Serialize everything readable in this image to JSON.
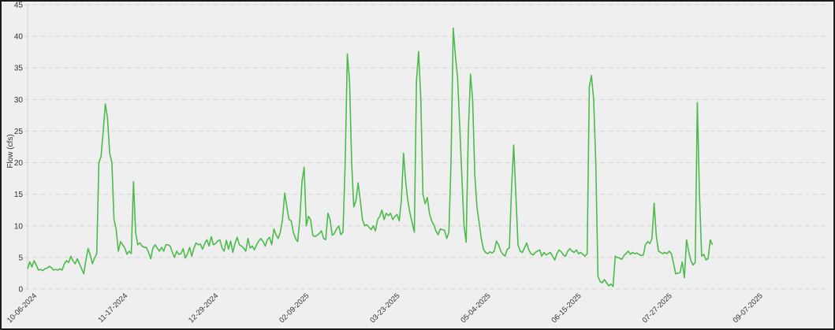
{
  "chart_data": {
    "type": "line",
    "title": "",
    "xlabel": "",
    "ylabel": "Flow (cfs)",
    "ylim": [
      0,
      45
    ],
    "yticks": [
      0,
      5,
      10,
      15,
      20,
      25,
      30,
      35,
      40,
      45
    ],
    "grid": "horizontal dashed",
    "legend": "none",
    "line_color": "#4cbb4c",
    "x_tick_labels": [
      "10-06-2024",
      "11-17-2024",
      "12-29-2024",
      "02-09-2025",
      "03-23-2025",
      "05-04-2025",
      "06-15-2025",
      "07-27-2025",
      "09-07-2025"
    ],
    "x_tick_days": [
      0,
      42,
      84,
      126,
      168,
      210,
      252,
      294,
      336
    ],
    "x_range_days": [
      0,
      371
    ],
    "series": [
      {
        "name": "Flow (cfs)",
        "points": [
          [
            0,
            3.2
          ],
          [
            1,
            4.3
          ],
          [
            2,
            3.5
          ],
          [
            3,
            4.5
          ],
          [
            4,
            3.8
          ],
          [
            5,
            3.0
          ],
          [
            6,
            3.1
          ],
          [
            7,
            2.9
          ],
          [
            8,
            3.2
          ],
          [
            9,
            3.3
          ],
          [
            10,
            3.6
          ],
          [
            11,
            3.4
          ],
          [
            12,
            3.0
          ],
          [
            13,
            3.1
          ],
          [
            14,
            3.0
          ],
          [
            15,
            3.2
          ],
          [
            16,
            3.0
          ],
          [
            17,
            4.0
          ],
          [
            18,
            4.5
          ],
          [
            19,
            4.2
          ],
          [
            20,
            5.2
          ],
          [
            21,
            4.5
          ],
          [
            22,
            4.0
          ],
          [
            23,
            4.8
          ],
          [
            24,
            4.0
          ],
          [
            25,
            3.2
          ],
          [
            26,
            2.4
          ],
          [
            27,
            4.6
          ],
          [
            28,
            6.4
          ],
          [
            29,
            5.4
          ],
          [
            30,
            4.0
          ],
          [
            31,
            4.9
          ],
          [
            32,
            5.6
          ],
          [
            33,
            20.0
          ],
          [
            34,
            21.0
          ],
          [
            35,
            25.0
          ],
          [
            36,
            29.3
          ],
          [
            37,
            27.0
          ],
          [
            38,
            21.5
          ],
          [
            39,
            20.0
          ],
          [
            40,
            11.0
          ],
          [
            41,
            9.5
          ],
          [
            42,
            6.0
          ],
          [
            43,
            7.5
          ],
          [
            44,
            7.0
          ],
          [
            45,
            6.5
          ],
          [
            46,
            5.5
          ],
          [
            47,
            6.0
          ],
          [
            48,
            5.6
          ],
          [
            49,
            17.0
          ],
          [
            50,
            9.0
          ],
          [
            51,
            7.0
          ],
          [
            52,
            7.3
          ],
          [
            53,
            6.8
          ],
          [
            54,
            6.6
          ],
          [
            55,
            6.6
          ],
          [
            56,
            5.8
          ],
          [
            57,
            4.8
          ],
          [
            58,
            6.5
          ],
          [
            59,
            7.0
          ],
          [
            60,
            6.5
          ],
          [
            61,
            6.0
          ],
          [
            62,
            6.6
          ],
          [
            63,
            6.0
          ],
          [
            64,
            7.0
          ],
          [
            65,
            7.0
          ],
          [
            66,
            6.8
          ],
          [
            67,
            5.8
          ],
          [
            68,
            5.0
          ],
          [
            69,
            6.0
          ],
          [
            70,
            5.5
          ],
          [
            71,
            5.6
          ],
          [
            72,
            6.4
          ],
          [
            73,
            4.9
          ],
          [
            74,
            5.6
          ],
          [
            75,
            6.6
          ],
          [
            76,
            5.2
          ],
          [
            77,
            6.5
          ],
          [
            78,
            7.3
          ],
          [
            79,
            7.0
          ],
          [
            80,
            7.1
          ],
          [
            81,
            6.3
          ],
          [
            82,
            7.2
          ],
          [
            83,
            7.8
          ],
          [
            84,
            6.8
          ],
          [
            85,
            8.3
          ],
          [
            86,
            7.0
          ],
          [
            87,
            7.2
          ],
          [
            88,
            7.6
          ],
          [
            89,
            7.8
          ],
          [
            90,
            6.5
          ],
          [
            91,
            6.0
          ],
          [
            92,
            7.7
          ],
          [
            93,
            6.3
          ],
          [
            94,
            7.6
          ],
          [
            95,
            5.8
          ],
          [
            96,
            7.2
          ],
          [
            97,
            8.2
          ],
          [
            98,
            7.0
          ],
          [
            99,
            6.8
          ],
          [
            100,
            6.5
          ],
          [
            101,
            6.0
          ],
          [
            102,
            8.0
          ],
          [
            103,
            6.5
          ],
          [
            104,
            6.8
          ],
          [
            105,
            6.2
          ],
          [
            106,
            7.0
          ],
          [
            107,
            7.6
          ],
          [
            108,
            8.0
          ],
          [
            109,
            7.5
          ],
          [
            110,
            6.8
          ],
          [
            111,
            7.8
          ],
          [
            112,
            8.2
          ],
          [
            113,
            7.0
          ],
          [
            114,
            9.5
          ],
          [
            115,
            8.6
          ],
          [
            116,
            8.0
          ],
          [
            117,
            9.0
          ],
          [
            118,
            11.0
          ],
          [
            119,
            15.2
          ],
          [
            120,
            13.0
          ],
          [
            121,
            11.0
          ],
          [
            122,
            10.8
          ],
          [
            123,
            9.0
          ],
          [
            124,
            8.0
          ],
          [
            125,
            7.5
          ],
          [
            126,
            11.0
          ],
          [
            127,
            17.0
          ],
          [
            128,
            19.3
          ],
          [
            129,
            10.0
          ],
          [
            130,
            11.5
          ],
          [
            131,
            11.0
          ],
          [
            132,
            8.5
          ],
          [
            133,
            8.3
          ],
          [
            134,
            8.5
          ],
          [
            135,
            8.8
          ],
          [
            136,
            9.2
          ],
          [
            137,
            8.0
          ],
          [
            138,
            7.8
          ],
          [
            139,
            12.0
          ],
          [
            140,
            11.0
          ],
          [
            141,
            8.5
          ],
          [
            142,
            8.8
          ],
          [
            143,
            9.5
          ],
          [
            144,
            10.0
          ],
          [
            145,
            8.6
          ],
          [
            146,
            9.0
          ],
          [
            147,
            20.0
          ],
          [
            148,
            37.2
          ],
          [
            149,
            33.0
          ],
          [
            150,
            20.0
          ],
          [
            151,
            13.0
          ],
          [
            152,
            14.0
          ],
          [
            153,
            16.8
          ],
          [
            154,
            14.0
          ],
          [
            155,
            11.0
          ],
          [
            156,
            10.0
          ],
          [
            157,
            10.2
          ],
          [
            158,
            9.8
          ],
          [
            159,
            9.4
          ],
          [
            160,
            10.0
          ],
          [
            161,
            9.2
          ],
          [
            162,
            11.0
          ],
          [
            163,
            11.5
          ],
          [
            164,
            12.5
          ],
          [
            165,
            11.0
          ],
          [
            166,
            12.0
          ],
          [
            167,
            11.6
          ],
          [
            168,
            12.0
          ],
          [
            169,
            11.0
          ],
          [
            170,
            11.5
          ],
          [
            171,
            11.8
          ],
          [
            172,
            10.8
          ],
          [
            173,
            14.0
          ],
          [
            174,
            21.5
          ],
          [
            175,
            17.0
          ],
          [
            176,
            14.0
          ],
          [
            177,
            12.0
          ],
          [
            178,
            10.5
          ],
          [
            179,
            9.0
          ],
          [
            180,
            33.0
          ],
          [
            181,
            37.6
          ],
          [
            182,
            30.0
          ],
          [
            183,
            15.0
          ],
          [
            184,
            13.5
          ],
          [
            185,
            14.5
          ],
          [
            186,
            12.0
          ],
          [
            187,
            10.8
          ],
          [
            188,
            10.2
          ],
          [
            189,
            9.2
          ],
          [
            190,
            8.6
          ],
          [
            191,
            9.5
          ],
          [
            192,
            9.4
          ],
          [
            193,
            9.3
          ],
          [
            194,
            8.0
          ],
          [
            195,
            9.0
          ],
          [
            196,
            20.0
          ],
          [
            197,
            41.3
          ],
          [
            198,
            37.0
          ],
          [
            199,
            33.5
          ],
          [
            200,
            26.0
          ],
          [
            201,
            18.0
          ],
          [
            202,
            10.0
          ],
          [
            203,
            7.4
          ],
          [
            204,
            25.0
          ],
          [
            205,
            34.0
          ],
          [
            206,
            30.0
          ],
          [
            207,
            18.0
          ],
          [
            208,
            13.0
          ],
          [
            209,
            10.5
          ],
          [
            210,
            8.0
          ],
          [
            211,
            6.3
          ],
          [
            212,
            5.8
          ],
          [
            213,
            5.6
          ],
          [
            214,
            5.9
          ],
          [
            215,
            5.7
          ],
          [
            216,
            6.0
          ],
          [
            217,
            7.6
          ],
          [
            218,
            7.0
          ],
          [
            219,
            6.0
          ],
          [
            220,
            5.5
          ],
          [
            221,
            5.2
          ],
          [
            222,
            6.3
          ],
          [
            223,
            6.5
          ],
          [
            224,
            16.0
          ],
          [
            225,
            22.8
          ],
          [
            226,
            15.0
          ],
          [
            227,
            7.0
          ],
          [
            228,
            6.0
          ],
          [
            229,
            5.8
          ],
          [
            230,
            6.5
          ],
          [
            231,
            7.3
          ],
          [
            232,
            6.2
          ],
          [
            233,
            5.6
          ],
          [
            234,
            5.4
          ],
          [
            235,
            5.8
          ],
          [
            236,
            6.0
          ],
          [
            237,
            6.2
          ],
          [
            238,
            5.2
          ],
          [
            239,
            5.8
          ],
          [
            240,
            5.4
          ],
          [
            241,
            5.6
          ],
          [
            242,
            5.8
          ],
          [
            243,
            5.2
          ],
          [
            244,
            4.6
          ],
          [
            245,
            5.6
          ],
          [
            246,
            6.2
          ],
          [
            247,
            5.9
          ],
          [
            248,
            5.4
          ],
          [
            249,
            5.2
          ],
          [
            250,
            6.0
          ],
          [
            251,
            6.4
          ],
          [
            252,
            6.0
          ],
          [
            253,
            5.8
          ],
          [
            254,
            6.2
          ],
          [
            255,
            5.6
          ],
          [
            256,
            5.8
          ],
          [
            257,
            5.5
          ],
          [
            258,
            5.2
          ],
          [
            259,
            5.6
          ],
          [
            260,
            32.0
          ],
          [
            261,
            33.8
          ],
          [
            262,
            30.0
          ],
          [
            263,
            20.0
          ],
          [
            264,
            2.0
          ],
          [
            265,
            1.2
          ],
          [
            266,
            1.0
          ],
          [
            267,
            1.5
          ],
          [
            268,
            1.0
          ],
          [
            269,
            0.5
          ],
          [
            270,
            0.8
          ],
          [
            271,
            0.4
          ],
          [
            272,
            5.2
          ],
          [
            273,
            5.0
          ],
          [
            274,
            4.9
          ],
          [
            275,
            4.7
          ],
          [
            276,
            5.3
          ],
          [
            277,
            5.6
          ],
          [
            278,
            6.0
          ],
          [
            279,
            5.5
          ],
          [
            280,
            5.8
          ],
          [
            281,
            5.6
          ],
          [
            282,
            5.7
          ],
          [
            283,
            5.5
          ],
          [
            284,
            5.3
          ],
          [
            285,
            5.4
          ],
          [
            286,
            7.0
          ],
          [
            287,
            7.5
          ],
          [
            288,
            7.2
          ],
          [
            289,
            8.0
          ],
          [
            290,
            13.6
          ],
          [
            291,
            8.5
          ],
          [
            292,
            6.0
          ],
          [
            293,
            5.8
          ],
          [
            294,
            5.6
          ],
          [
            295,
            5.8
          ],
          [
            296,
            5.6
          ],
          [
            297,
            6.0
          ],
          [
            298,
            5.6
          ],
          [
            299,
            4.0
          ],
          [
            300,
            2.4
          ],
          [
            301,
            2.5
          ],
          [
            302,
            2.6
          ],
          [
            303,
            4.3
          ],
          [
            304,
            1.8
          ],
          [
            305,
            7.8
          ],
          [
            306,
            6.0
          ],
          [
            307,
            4.5
          ],
          [
            308,
            3.8
          ],
          [
            309,
            4.2
          ],
          [
            310,
            29.5
          ],
          [
            311,
            15.0
          ],
          [
            312,
            5.2
          ],
          [
            313,
            5.5
          ],
          [
            314,
            4.6
          ],
          [
            315,
            4.8
          ],
          [
            316,
            7.8
          ],
          [
            317,
            7.0
          ]
        ]
      }
    ]
  }
}
